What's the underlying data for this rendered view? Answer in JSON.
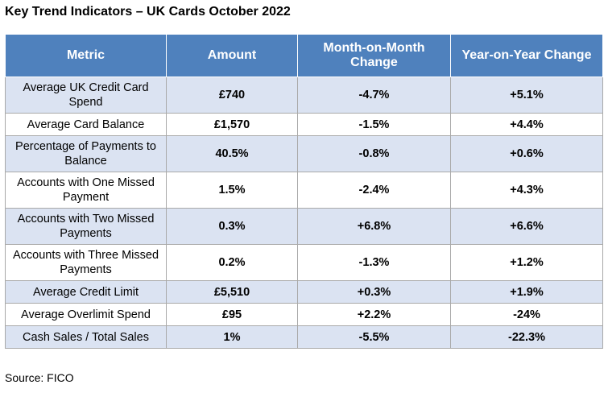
{
  "title": "Key Trend Indicators – UK Cards October 2022",
  "table": {
    "headers": [
      "Metric",
      "Amount",
      "Month-on-Month Change",
      "Year-on-Year Change"
    ],
    "rows": [
      {
        "metric": "Average UK Credit Card Spend",
        "amount": "£740",
        "mom": "-4.7%",
        "yoy": "+5.1%"
      },
      {
        "metric": "Average Card Balance",
        "amount": "£1,570",
        "mom": "-1.5%",
        "yoy": "+4.4%"
      },
      {
        "metric": "Percentage of Payments to Balance",
        "amount": "40.5%",
        "mom": "-0.8%",
        "yoy": "+0.6%"
      },
      {
        "metric": "Accounts with One Missed Payment",
        "amount": "1.5%",
        "mom": "-2.4%",
        "yoy": "+4.3%"
      },
      {
        "metric": "Accounts with Two Missed Payments",
        "amount": "0.3%",
        "mom": "+6.8%",
        "yoy": "+6.6%"
      },
      {
        "metric": "Accounts with Three Missed Payments",
        "amount": "0.2%",
        "mom": "-1.3%",
        "yoy": "+1.2%"
      },
      {
        "metric": "Average Credit Limit",
        "amount": "£5,510",
        "mom": "+0.3%",
        "yoy": "+1.9%"
      },
      {
        "metric": "Average Overlimit Spend",
        "amount": "£95",
        "mom": "+2.2%",
        "yoy": "-24%"
      },
      {
        "metric": "Cash Sales / Total Sales",
        "amount": "1%",
        "mom": "-5.5%",
        "yoy": "-22.3%"
      }
    ]
  },
  "source": "Source: FICO",
  "colors": {
    "header_bg": "#4f81bd",
    "header_text": "#ffffff",
    "row_shade": "#dbe3f2",
    "row_plain": "#ffffff",
    "grid": "#a9a9a9"
  }
}
